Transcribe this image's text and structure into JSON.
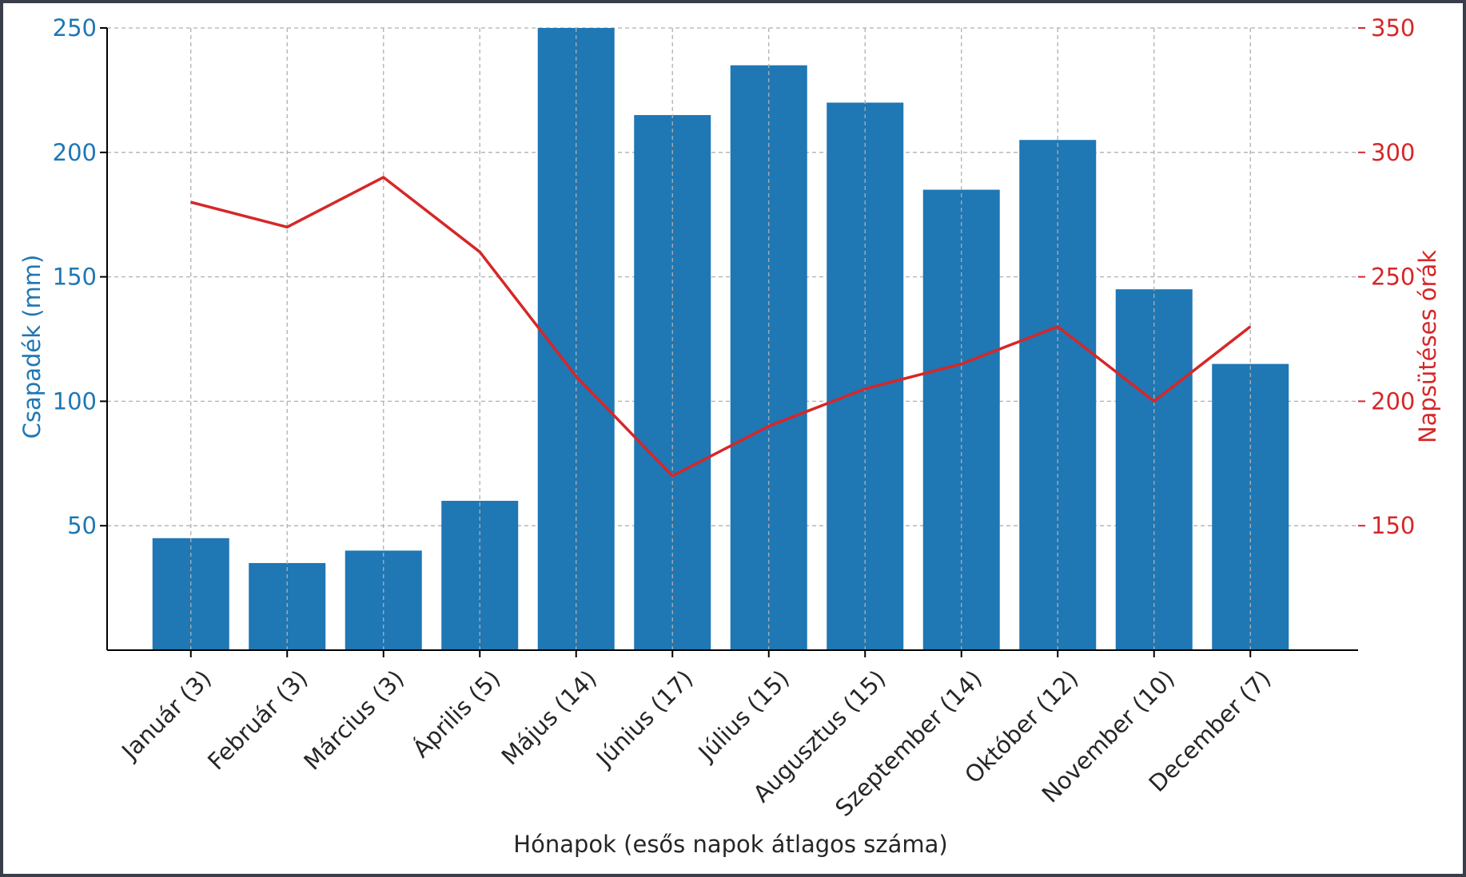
{
  "chart_data": {
    "type": "bar",
    "categories": [
      "Január (3)",
      "Február (3)",
      "Március (3)",
      "Április (5)",
      "Május (14)",
      "Június (17)",
      "Július (15)",
      "Augusztus (15)",
      "Szeptember (14)",
      "Október (12)",
      "November (10)",
      "December (7)"
    ],
    "series": [
      {
        "type": "bar",
        "axis": "left",
        "values": [
          45,
          35,
          40,
          60,
          250,
          215,
          235,
          220,
          185,
          205,
          145,
          115
        ]
      },
      {
        "type": "line",
        "axis": "right",
        "values": [
          280,
          270,
          290,
          260,
          210,
          170,
          190,
          205,
          215,
          230,
          200,
          230
        ]
      }
    ],
    "xlabel": "Hónapok (esős napok átlagos száma)",
    "ylabel_left": "Csapadék (mm)",
    "ylabel_right": "Napsütéses órák",
    "ylim_left": [
      0,
      250
    ],
    "ylim_right": [
      100,
      350
    ],
    "yticks_left": [
      50,
      100,
      150,
      200,
      250
    ],
    "yticks_right": [
      150,
      200,
      250,
      300,
      350
    ],
    "grid": true,
    "colors": {
      "bar": "#1f77b4",
      "line": "#d62728",
      "text": "#262626",
      "grid": "#b0b0b0",
      "left_axis": "#1f77b4",
      "right_axis": "#d62728"
    }
  }
}
